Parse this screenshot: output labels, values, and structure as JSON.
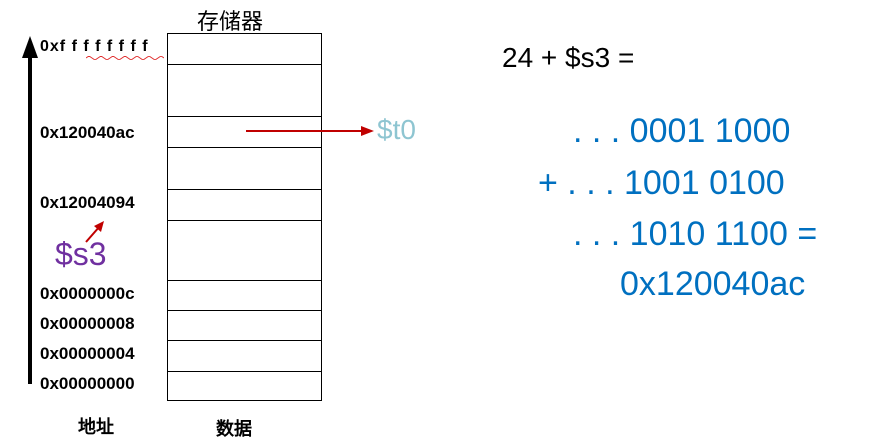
{
  "memory": {
    "title": "存储器",
    "row_count": 10
  },
  "addresses": {
    "top": "0xf f f f f f f f",
    "a120040ac": "0x120040ac",
    "a12004094": "0x12004094",
    "a0c": "0x0000000c",
    "a08": "0x00000008",
    "a04": "0x00000004",
    "a00": "0x00000000"
  },
  "labels": {
    "address_axis": "地址",
    "data_axis": "数据",
    "s3": "$s3",
    "t0": "$t0"
  },
  "equation": {
    "title": "24 + $s3 =",
    "line1": ". . . 0001 1000",
    "line2": "+ . . . 1001 0100",
    "line3": ". . . 1010 1100 =",
    "line4": "0x120040ac"
  },
  "colors": {
    "purple": "#7030a0",
    "light_blue": "#8ec5d1",
    "blue": "#0070c0",
    "dark_red": "#c00000"
  }
}
